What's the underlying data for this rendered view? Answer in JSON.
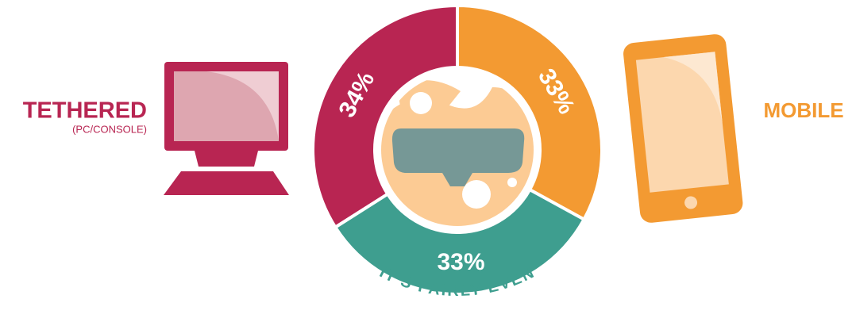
{
  "chart_data": {
    "type": "donut",
    "categories": [
      "TETHERED",
      "MOBILE",
      null
    ],
    "category_sublabels": [
      "(PC/CONSOLE)",
      null,
      null
    ],
    "values": [
      34,
      33,
      33
    ],
    "value_labels": [
      "34%",
      "33%",
      "33%"
    ],
    "colors": [
      "#b82552",
      "#f39a32",
      "#3e9e8f"
    ],
    "caption": "IT'S FAIRLY EVEN"
  }
}
